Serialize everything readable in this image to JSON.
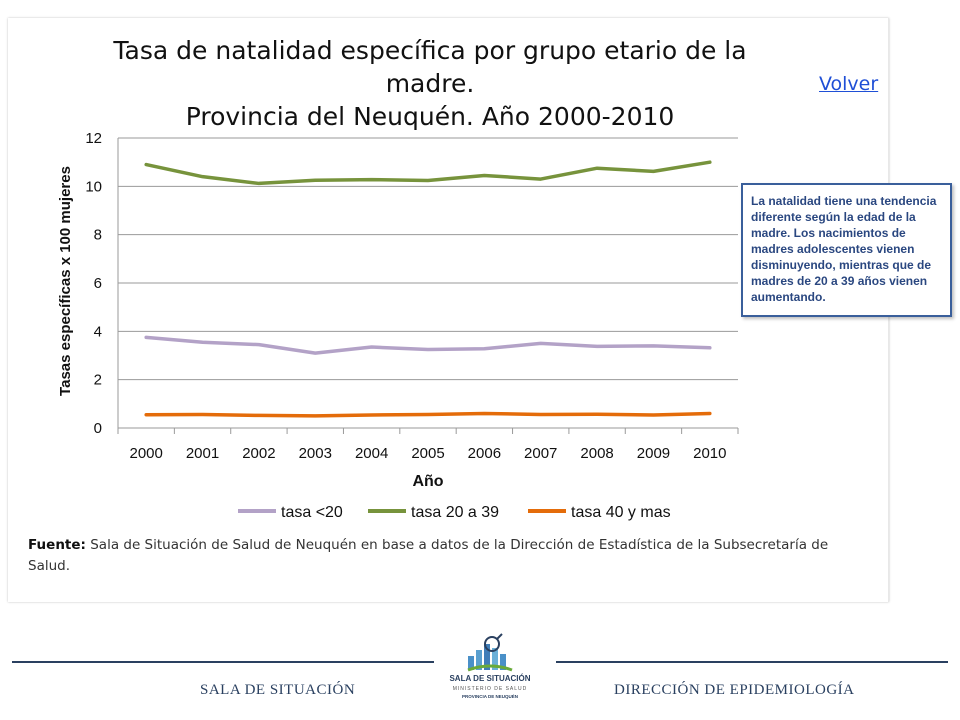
{
  "header": {
    "title_line1": "Tasa de natalidad específica por grupo etario de la madre.",
    "title_line2": "Provincia del Neuquén. Año 2000-2010",
    "back_link": "Volver"
  },
  "note": "La natalidad tiene una tendencia diferente según la edad de la madre. Los nacimientos de madres adolescentes vienen disminuyendo, mientras  que de madres de 20 a 39 años  vienen aumentando.",
  "source": {
    "label": "Fuente:",
    "text": " Sala de Situación de Salud de Neuquén en base a datos de la Dirección de Estadística de la Subsecretaría de Salud."
  },
  "footer": {
    "left": "SALA DE SITUACIÓN",
    "right": "DIRECCIÓN DE EPIDEMIOLOGÍA",
    "logo_line1": "SALA DE SITUACIÓN",
    "logo_line2": "MINISTERIO DE SALUD",
    "logo_line3": "PROVINCIA DE NEUQUÉN"
  },
  "chart_data": {
    "type": "line",
    "x": [
      "2000",
      "2001",
      "2002",
      "2003",
      "2004",
      "2005",
      "2006",
      "2007",
      "2008",
      "2009",
      "2010"
    ],
    "xlabel": "Año",
    "ylabel": "Tasas específicas x 100 mujeres",
    "ylim": [
      0,
      12
    ],
    "yticks": [
      0,
      2,
      4,
      6,
      8,
      10,
      12
    ],
    "grid": true,
    "legend_position": "bottom",
    "series": [
      {
        "name": "tasa <20",
        "color": "#b3a2c7",
        "values": [
          3.75,
          3.55,
          3.45,
          3.1,
          3.35,
          3.25,
          3.28,
          3.5,
          3.38,
          3.4,
          3.32
        ]
      },
      {
        "name": "tasa 20 a 39",
        "color": "#77933c",
        "values": [
          10.9,
          10.4,
          10.12,
          10.25,
          10.28,
          10.24,
          10.45,
          10.3,
          10.75,
          10.62,
          11.0
        ]
      },
      {
        "name": "tasa 40 y mas",
        "color": "#e46c0a",
        "values": [
          0.55,
          0.56,
          0.52,
          0.5,
          0.54,
          0.56,
          0.6,
          0.56,
          0.57,
          0.54,
          0.6
        ]
      }
    ]
  }
}
